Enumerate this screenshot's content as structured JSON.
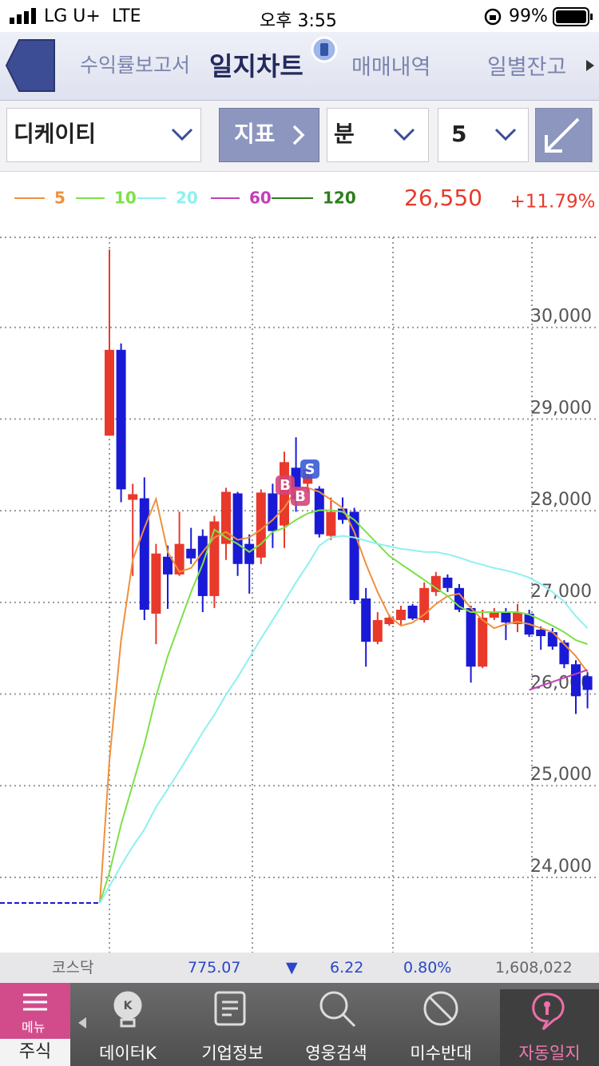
{
  "status_bar": {
    "carrier": "LG U+",
    "network": "LTE",
    "time": "오후 3:55",
    "battery": "99%"
  },
  "nav_tabs": [
    "수익률보고서",
    "일지차트",
    "매매내역",
    "일별잔고"
  ],
  "toolbar": {
    "stock": "디케이티",
    "indicator": "지표",
    "period_unit": "분",
    "period": "5"
  },
  "chart_data": {
    "type": "candlestick",
    "price": "26,550",
    "change": "+11.79%",
    "up_color": "#e8392b",
    "down_color": "#1a1ad6",
    "prev_close": 23720,
    "open": [
      28819,
      29755,
      28119,
      28136,
      26877,
      27498,
      27305,
      27585,
      27725,
      27069,
      27638,
      28189,
      27638,
      27489,
      28189,
      27839,
      28469,
      28294,
      28241,
      27725,
      28023,
      27988,
      27043,
      26570,
      26763,
      26807,
      26964,
      26807,
      27113,
      27270,
      27157,
      26938,
      26299,
      26833,
      26894,
      26763,
      26877,
      26702,
      26675,
      26562,
      26325,
      26194
    ],
    "high": [
      30849,
      29825,
      28294,
      28364,
      27638,
      27620,
      27988,
      27813,
      27796,
      27944,
      28250,
      28206,
      27743,
      28233,
      28294,
      28644,
      28801,
      28530,
      28268,
      28145,
      28145,
      28031,
      27157,
      26894,
      26868,
      26964,
      26982,
      27218,
      27332,
      27305,
      27200,
      26964,
      26920,
      26938,
      26938,
      26982,
      26920,
      26737,
      26719,
      26588,
      26369,
      26238
    ],
    "low": [
      28819,
      28093,
      27288,
      26807,
      26544,
      26929,
      27288,
      27419,
      26894,
      26938,
      27463,
      27288,
      27095,
      27419,
      27594,
      27594,
      27988,
      28200,
      27708,
      27681,
      27857,
      26982,
      26299,
      26544,
      26745,
      26745,
      26807,
      26780,
      27069,
      27113,
      26894,
      26124,
      26282,
      26807,
      26588,
      26675,
      26623,
      26483,
      26483,
      26282,
      25783,
      25844
    ],
    "close": [
      29755,
      28233,
      28180,
      26920,
      27533,
      27305,
      27638,
      27480,
      27069,
      27883,
      28206,
      27419,
      27419,
      28198,
      27778,
      28530,
      28128,
      28451,
      27743,
      27988,
      27900,
      27025,
      26570,
      26807,
      26833,
      26920,
      26824,
      27157,
      27288,
      27157,
      26920,
      26299,
      26833,
      26894,
      26781,
      26894,
      26649,
      26632,
      26518,
      26325,
      25976,
      26045
    ],
    "series": [
      {
        "name": "5",
        "color": "#f0903c",
        "values": [
          25276,
          26588,
          27463,
          27813,
          28128,
          27550,
          27332,
          27375,
          27550,
          27708,
          27769,
          27682,
          27708,
          27795,
          27900,
          28031,
          28233,
          28250,
          28206,
          28119,
          28031,
          27769,
          27419,
          27113,
          26850,
          26745,
          26780,
          26868,
          26982,
          27069,
          27095,
          26938,
          26807,
          26719,
          26763,
          26789,
          26763,
          26719,
          26675,
          26544,
          26413,
          26238
        ]
      },
      {
        "name": "10",
        "color": "#7de04a",
        "values": [
          24051,
          24576,
          25013,
          25451,
          25975,
          26413,
          26763,
          27113,
          27419,
          27795,
          27708,
          27638,
          27550,
          27638,
          27769,
          27813,
          27900,
          27970,
          28005,
          28005,
          27988,
          27900,
          27769,
          27638,
          27507,
          27419,
          27332,
          27244,
          27157,
          27069,
          26955,
          26894,
          26894,
          26894,
          26894,
          26894,
          26868,
          26807,
          26745,
          26675,
          26588,
          26544
        ]
      },
      {
        "name": "20",
        "color": "#8ff0f0",
        "values": [
          23902,
          24129,
          24339,
          24523,
          24768,
          24961,
          25162,
          25372,
          25582,
          25774,
          25993,
          26185,
          26395,
          26605,
          26807,
          27008,
          27218,
          27410,
          27620,
          27708,
          27725,
          27708,
          27673,
          27638,
          27612,
          27585,
          27568,
          27550,
          27550,
          27524,
          27489,
          27445,
          27410,
          27375,
          27349,
          27314,
          27270,
          27200,
          27113,
          27008,
          26850,
          26719
        ]
      },
      {
        "name": "60",
        "color": "#c23fb8",
        "values": [
          null,
          null,
          null,
          null,
          null,
          null,
          null,
          null,
          null,
          null,
          null,
          null,
          null,
          null,
          null,
          null,
          null,
          null,
          null,
          null,
          null,
          null,
          null,
          null,
          null,
          null,
          null,
          null,
          null,
          null,
          null,
          null,
          null,
          null,
          null,
          null,
          26045,
          26089,
          26133,
          26177,
          26220,
          26264
        ]
      },
      {
        "name": "120",
        "color": "#2e7d1e",
        "values": [
          null,
          null,
          null,
          null,
          null,
          null,
          null,
          null,
          null,
          null,
          null,
          null,
          null,
          null,
          null,
          null,
          null,
          null,
          null,
          null,
          null,
          null,
          null,
          null,
          null,
          null,
          null,
          null,
          null,
          null,
          null,
          null,
          null,
          null,
          null,
          null,
          null,
          null,
          null,
          null,
          null,
          null
        ]
      }
    ],
    "trade_markers": [
      "B",
      "B",
      "S"
    ],
    "ylim": [
      23180,
      31000
    ],
    "yticks": [
      {
        "value": 24000,
        "label": "24,000"
      },
      {
        "value": 25000,
        "label": "25,000"
      },
      {
        "value": 26000,
        "label": "26,000"
      },
      {
        "value": 27000,
        "label": "27,000"
      },
      {
        "value": 28000,
        "label": "28,000"
      },
      {
        "value": 29000,
        "label": "29,000"
      },
      {
        "value": 30000,
        "label": "30,000"
      }
    ],
    "grid": true
  },
  "index_bar": {
    "name": "코스닥",
    "value": "775.07",
    "direction": "▼",
    "change": "6.22",
    "change_pct": "0.80%",
    "volume": "1,608,022"
  },
  "tab_bar": {
    "menu": "메뉴",
    "section": "주식",
    "tabs": [
      "데이터K",
      "기업정보",
      "영웅검색",
      "미수반대",
      "자동일지"
    ]
  }
}
